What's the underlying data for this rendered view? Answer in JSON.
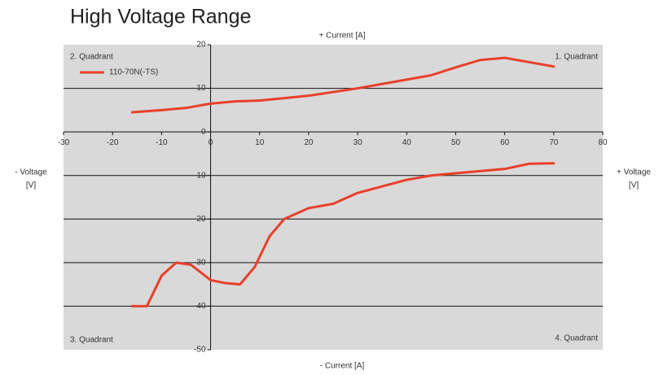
{
  "chart_data": {
    "type": "line",
    "title": "High Voltage Range",
    "axis_labels": {
      "top": "+ Current [A]",
      "bottom": "- Current [A]",
      "left": [
        "- Voltage",
        "[V]"
      ],
      "right": [
        "+ Voltage",
        "[V]"
      ]
    },
    "annotations": [
      "2. Quadrant",
      "1. Quadrant",
      "3. Quadrant",
      "4. Quadrant"
    ],
    "x": [
      -16,
      -10,
      -5,
      0,
      5,
      10,
      20,
      30,
      40,
      45,
      50,
      55,
      60,
      65,
      70,
      null,
      -16,
      -13,
      -10,
      -7,
      -4,
      0,
      3,
      6,
      9,
      12,
      15,
      20,
      25,
      30,
      40,
      45,
      50,
      60,
      65,
      70
    ],
    "series": [
      {
        "name": "110-70N(-TS)",
        "color": "#e8402a",
        "values": [
          4.5,
          5,
          5.5,
          6.5,
          7,
          7.2,
          8.3,
          10,
          12,
          13,
          14.8,
          16.5,
          17,
          16,
          15,
          null,
          -40,
          -40,
          -33,
          -30,
          -30.5,
          -34,
          -34.7,
          -35,
          -31,
          -24,
          -20,
          -17.5,
          -16.5,
          -14,
          -11,
          -10,
          -9.5,
          -8.5,
          -7.3,
          -7.2
        ]
      }
    ],
    "xlim": [
      -30,
      80
    ],
    "xticks": [
      -30,
      -20,
      -10,
      0,
      10,
      20,
      30,
      40,
      50,
      60,
      70,
      80
    ],
    "ylim": [
      -50,
      20
    ],
    "yticks": [
      -50,
      -40,
      -30,
      -20,
      -10,
      0,
      10,
      20
    ],
    "grid": true,
    "legend": "top-left"
  }
}
